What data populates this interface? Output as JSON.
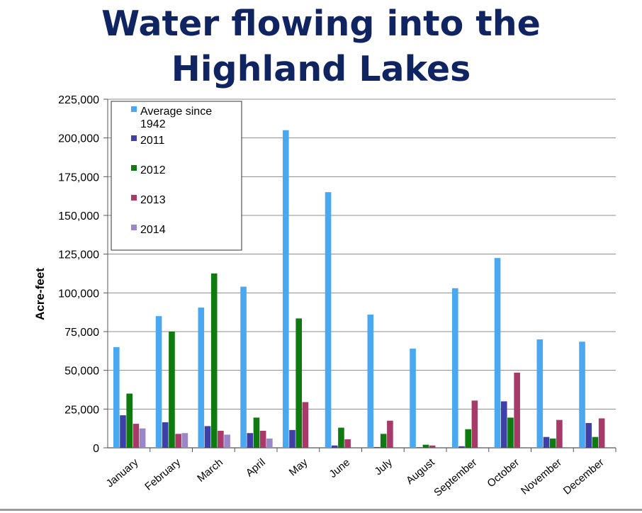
{
  "title_lines": [
    "Water flowing into the",
    "Highland Lakes"
  ],
  "chart_data": {
    "type": "bar",
    "title": "Water flowing into the Highland Lakes",
    "xlabel": "",
    "ylabel": "Acre-feet",
    "ylim": [
      0,
      225000
    ],
    "yticks": [
      0,
      25000,
      50000,
      75000,
      100000,
      125000,
      150000,
      175000,
      200000,
      225000
    ],
    "ytick_labels": [
      "0",
      "25,000",
      "50,000",
      "75,000",
      "100,000",
      "125,000",
      "150,000",
      "175,000",
      "200,000",
      "225,000"
    ],
    "grid": true,
    "legend_position": "top-left",
    "categories": [
      "January",
      "February",
      "March",
      "April",
      "May",
      "June",
      "July",
      "August",
      "September",
      "October",
      "November",
      "December"
    ],
    "series": [
      {
        "name": "Average since 1942",
        "legend_lines": [
          "Average since",
          "1942"
        ],
        "color": "#4aa8f0",
        "values": [
          65000,
          85000,
          90500,
          104000,
          205000,
          165000,
          86000,
          64000,
          103000,
          122500,
          70000,
          68500
        ]
      },
      {
        "name": "2011",
        "legend_lines": [
          "2011"
        ],
        "color": "#3f3fa8",
        "values": [
          21000,
          16500,
          14000,
          9500,
          11500,
          1500,
          500,
          200,
          1000,
          30000,
          7000,
          16000
        ]
      },
      {
        "name": "2012",
        "legend_lines": [
          "2012"
        ],
        "color": "#0f7a0f",
        "values": [
          35000,
          75000,
          112500,
          19500,
          83500,
          13000,
          9000,
          2000,
          12000,
          19500,
          6000,
          7000
        ]
      },
      {
        "name": "2013",
        "legend_lines": [
          "2013"
        ],
        "color": "#a83a6a",
        "values": [
          15500,
          9000,
          11000,
          11000,
          29500,
          5500,
          17500,
          1500,
          30500,
          48500,
          18000,
          19000
        ]
      },
      {
        "name": "2014",
        "legend_lines": [
          "2014"
        ],
        "color": "#9b86c8",
        "values": [
          12500,
          9500,
          8500,
          6000,
          null,
          null,
          null,
          null,
          null,
          null,
          null,
          null
        ]
      }
    ]
  }
}
